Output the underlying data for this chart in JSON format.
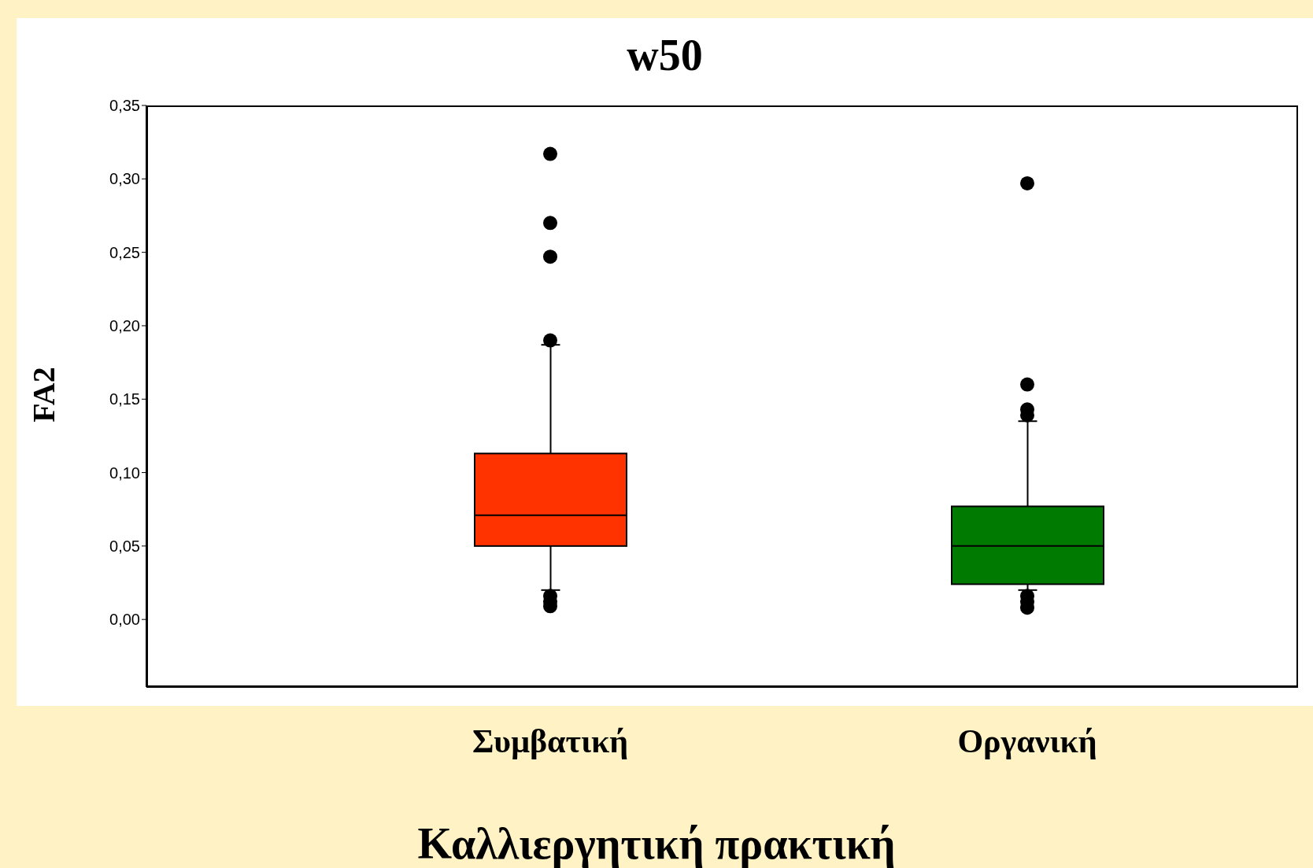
{
  "chart_data": {
    "type": "box",
    "title": "w50",
    "xlabel": "Καλλιεργητική πρακτική",
    "ylabel": "FA2",
    "categories": [
      "Συμβατική",
      "Οργανική"
    ],
    "colors": [
      "#ff3300",
      "#007a00"
    ],
    "boxes": [
      {
        "low": 0.02,
        "q1": 0.05,
        "median": 0.071,
        "q3": 0.113,
        "high": 0.187,
        "outliers": [
          0.317,
          0.27,
          0.247,
          0.19,
          0.016,
          0.012,
          0.009
        ]
      },
      {
        "low": 0.02,
        "q1": 0.024,
        "median": 0.05,
        "q3": 0.077,
        "high": 0.135,
        "outliers": [
          0.297,
          0.16,
          0.143,
          0.139,
          0.016,
          0.012,
          0.008
        ]
      }
    ],
    "ylim": [
      -0.046,
      0.35
    ],
    "yticks": [
      {
        "value": 0,
        "label": "0,00"
      },
      {
        "value": 0.05,
        "label": "0,05"
      },
      {
        "value": 0.1,
        "label": "0,10"
      },
      {
        "value": 0.15,
        "label": "0,15"
      },
      {
        "value": 0.2,
        "label": "0,20"
      },
      {
        "value": 0.25,
        "label": "0,25"
      },
      {
        "value": 0.3,
        "label": "0,30"
      },
      {
        "value": 0.35,
        "label": "0,35"
      }
    ]
  }
}
